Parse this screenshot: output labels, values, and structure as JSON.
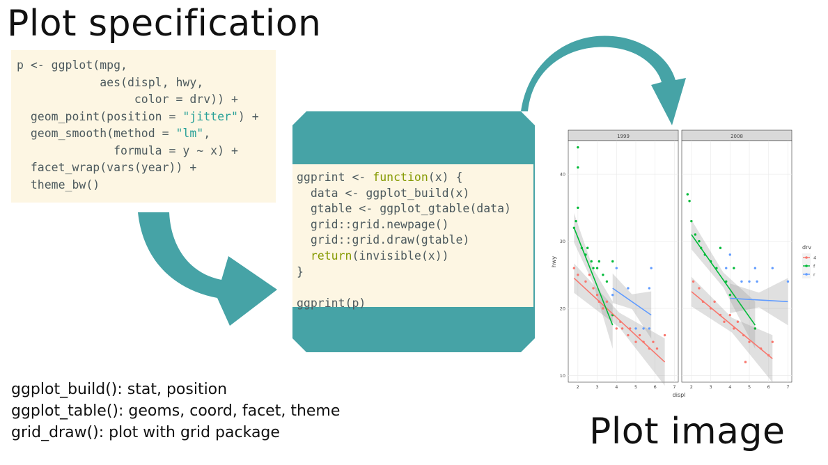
{
  "titles": {
    "spec": "Plot specification",
    "image": "Plot image"
  },
  "spec_code": {
    "l1": "p <- ggplot(mpg,",
    "l2a": "            aes(displ, hwy,",
    "l3a": "                 color = drv)) +",
    "l4a": "  geom_point(position = ",
    "l4s": "\"jitter\"",
    "l4b": ") +",
    "l5a": "  geom_smooth(method = ",
    "l5s": "\"lm\"",
    "l5b": ",",
    "l6": "              formula = y ~ x) +",
    "l7": "  facet_wrap(vars(year)) +",
    "l8": "  theme_bw()"
  },
  "func_code": {
    "l1a": "ggprint <- ",
    "l1k": "function",
    "l1b": "(x) {",
    "l2": "  data <- ggplot_build(x)",
    "l3": "  gtable <- ggplot_gtable(data)",
    "l4": "  grid::grid.newpage()",
    "l5": "  grid::grid.draw(gtable)",
    "l6k": "  return",
    "l6b": "(invisible(x))",
    "l7": "}",
    "l8": "ggprint(p)"
  },
  "notes": [
    "ggplot_build(): stat, position",
    "ggplot_table(): geoms, coord, facet, theme",
    "grid_draw(): plot with grid package"
  ],
  "colors": {
    "teal": "#46a3a6",
    "code_bg": "#fdf6e3",
    "series_4": "#f8766d",
    "series_f": "#00ba38",
    "series_r": "#619cff"
  },
  "chart_data": {
    "type": "scatter",
    "facets": [
      "1999",
      "2008"
    ],
    "xlabel": "displ",
    "ylabel": "hwy",
    "xlim": [
      1.5,
      7.2
    ],
    "ylim": [
      9,
      45
    ],
    "x_ticks": [
      2,
      3,
      4,
      5,
      6,
      7
    ],
    "y_ticks": [
      10,
      20,
      30,
      40
    ],
    "legend": {
      "title": "drv",
      "entries": [
        "4",
        "f",
        "r"
      ],
      "position": "right"
    },
    "grid": true,
    "series": [
      {
        "name": "4",
        "color": "#f8766d",
        "facet_points": [
          [
            [
              1.8,
              26
            ],
            [
              2.0,
              25
            ],
            [
              2.4,
              24
            ],
            [
              2.6,
              25
            ],
            [
              2.8,
              23
            ],
            [
              3.0,
              22
            ],
            [
              3.1,
              21
            ],
            [
              3.3,
              20
            ],
            [
              3.5,
              21
            ],
            [
              3.8,
              19
            ],
            [
              4.0,
              17
            ],
            [
              4.2,
              18
            ],
            [
              4.3,
              17
            ],
            [
              4.6,
              16
            ],
            [
              4.7,
              17
            ],
            [
              5.0,
              15
            ],
            [
              5.2,
              16
            ],
            [
              5.4,
              15
            ],
            [
              5.7,
              14
            ],
            [
              5.9,
              15
            ],
            [
              6.1,
              14
            ],
            [
              6.5,
              16
            ]
          ],
          [
            [
              2.1,
              24
            ],
            [
              2.4,
              23
            ],
            [
              2.6,
              21
            ],
            [
              3.0,
              20
            ],
            [
              3.2,
              21
            ],
            [
              3.5,
              19
            ],
            [
              3.7,
              18
            ],
            [
              4.0,
              19
            ],
            [
              4.2,
              17
            ],
            [
              4.4,
              18
            ],
            [
              4.7,
              16
            ],
            [
              4.8,
              12
            ],
            [
              5.0,
              15
            ],
            [
              5.3,
              17
            ],
            [
              5.6,
              14
            ],
            [
              6.0,
              13
            ],
            [
              6.2,
              15
            ]
          ]
        ],
        "fits": [
          [
            1.8,
            24.5
          ],
          [
            6.5,
            12
          ],
          [
            2.0,
            22.5
          ],
          [
            6.2,
            12.5
          ]
        ]
      },
      {
        "name": "f",
        "color": "#00ba38",
        "facet_points": [
          [
            [
              1.8,
              32
            ],
            [
              1.9,
              33
            ],
            [
              2.0,
              35
            ],
            [
              2.0,
              44
            ],
            [
              2.0,
              41
            ],
            [
              2.2,
              29
            ],
            [
              2.4,
              28
            ],
            [
              2.5,
              29
            ],
            [
              2.7,
              27
            ],
            [
              2.8,
              26
            ],
            [
              3.0,
              26
            ],
            [
              3.1,
              27
            ],
            [
              3.3,
              25
            ],
            [
              3.5,
              24
            ],
            [
              3.8,
              27
            ],
            [
              3.8,
              19
            ]
          ],
          [
            [
              1.8,
              37
            ],
            [
              1.9,
              36
            ],
            [
              2.0,
              33
            ],
            [
              2.2,
              31
            ],
            [
              2.4,
              30
            ],
            [
              2.5,
              29
            ],
            [
              2.7,
              28
            ],
            [
              3.0,
              27
            ],
            [
              3.3,
              26
            ],
            [
              3.5,
              29
            ],
            [
              3.8,
              24
            ],
            [
              4.0,
              22
            ],
            [
              4.2,
              26
            ],
            [
              5.3,
              17
            ]
          ]
        ],
        "fits": [
          [
            1.8,
            32
          ],
          [
            3.8,
            17.5
          ],
          [
            2.0,
            31
          ],
          [
            5.3,
            17.5
          ]
        ]
      },
      {
        "name": "r",
        "color": "#619cff",
        "facet_points": [
          [
            [
              3.8,
              22
            ],
            [
              4.0,
              26
            ],
            [
              4.6,
              23
            ],
            [
              5.0,
              17
            ],
            [
              5.4,
              17
            ],
            [
              5.7,
              17
            ],
            [
              5.7,
              23
            ],
            [
              5.8,
              26
            ]
          ],
          [
            [
              3.8,
              26
            ],
            [
              4.0,
              28
            ],
            [
              4.6,
              24
            ],
            [
              5.0,
              24
            ],
            [
              5.3,
              26
            ],
            [
              5.4,
              24
            ],
            [
              6.2,
              26
            ],
            [
              7.0,
              24
            ]
          ]
        ],
        "fits": [
          [
            3.8,
            23
          ],
          [
            5.8,
            19
          ],
          [
            4.0,
            21.5
          ],
          [
            7.0,
            21
          ]
        ]
      }
    ]
  }
}
